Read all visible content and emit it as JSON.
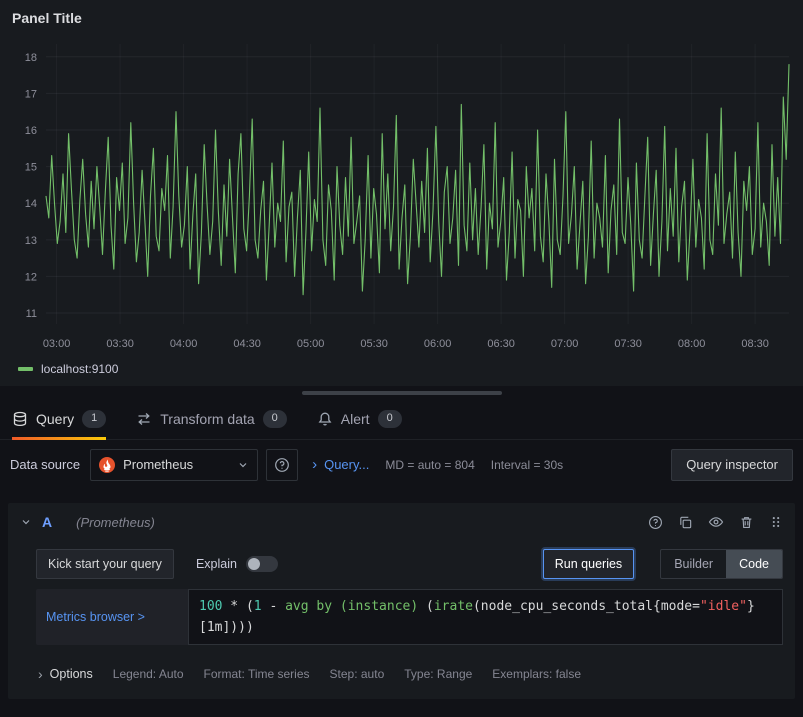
{
  "panel": {
    "title": "Panel Title",
    "legend": "localhost:9100"
  },
  "chart_data": {
    "type": "line",
    "series": [
      {
        "name": "localhost:9100"
      }
    ],
    "color": "#73bf69",
    "ylim": [
      10.7,
      18.35
    ],
    "yticks": [
      11,
      12,
      13,
      14,
      15,
      16,
      17,
      18
    ],
    "xlim": [
      175,
      526
    ],
    "xticks": [
      {
        "label": "03:00",
        "t": 180
      },
      {
        "label": "03:30",
        "t": 210
      },
      {
        "label": "04:00",
        "t": 240
      },
      {
        "label": "04:30",
        "t": 270
      },
      {
        "label": "05:00",
        "t": 300
      },
      {
        "label": "05:30",
        "t": 330
      },
      {
        "label": "06:00",
        "t": 360
      },
      {
        "label": "06:30",
        "t": 390
      },
      {
        "label": "07:00",
        "t": 420
      },
      {
        "label": "07:30",
        "t": 450
      },
      {
        "label": "08:00",
        "t": 480
      },
      {
        "label": "08:30",
        "t": 510
      }
    ],
    "values": [
      14.2,
      13.6,
      15.3,
      14.0,
      12.9,
      13.5,
      14.8,
      13.2,
      15.9,
      14.4,
      13.0,
      12.5,
      14.1,
      15.2,
      13.7,
      12.8,
      14.6,
      13.3,
      15.0,
      13.9,
      12.6,
      14.3,
      15.8,
      13.4,
      12.2,
      14.7,
      13.8,
      15.1,
      12.9,
      13.6,
      16.2,
      14.0,
      12.4,
      13.2,
      14.9,
      13.5,
      12.0,
      14.2,
      15.5,
      13.1,
      12.7,
      14.4,
      13.8,
      15.3,
      12.5,
      13.9,
      16.5,
      14.2,
      12.8,
      13.4,
      15.0,
      12.2,
      13.7,
      14.8,
      11.8,
      13.2,
      15.6,
      14.0,
      12.6,
      13.5,
      16.0,
      13.8,
      12.3,
      14.5,
      13.1,
      15.2,
      13.6,
      12.1,
      14.8,
      15.9,
      13.3,
      12.7,
      14.2,
      16.3,
      13.0,
      12.5,
      13.8,
      14.6,
      11.9,
      13.4,
      15.1,
      12.8,
      14.0,
      13.5,
      15.7,
      12.4,
      13.9,
      14.3,
      12.0,
      13.6,
      14.9,
      11.5,
      13.2,
      15.4,
      12.7,
      14.1,
      13.5,
      16.6,
      13.0,
      12.3,
      14.5,
      13.8,
      11.9,
      15.0,
      13.4,
      12.6,
      14.7,
      13.1,
      15.8,
      12.9,
      13.5,
      14.2,
      11.6,
      13.0,
      15.3,
      12.5,
      14.4,
      13.7,
      12.1,
      15.9,
      13.3,
      14.8,
      12.7,
      13.9,
      16.4,
      12.2,
      13.6,
      14.5,
      11.8,
      13.1,
      15.2,
      14.0,
      12.8,
      14.6,
      13.2,
      15.5,
      12.4,
      13.8,
      16.1,
      13.5,
      12.0,
      14.3,
      15.0,
      12.9,
      13.6,
      14.9,
      12.3,
      16.7,
      13.4,
      12.7,
      15.1,
      13.0,
      14.4,
      12.6,
      13.9,
      15.6,
      12.2,
      14.0,
      13.3,
      16.2,
      12.8,
      13.5,
      14.7,
      11.9,
      13.2,
      15.4,
      12.5,
      14.1,
      13.8,
      12.0,
      15.0,
      13.6,
      14.4,
      12.7,
      16.0,
      13.1,
      12.4,
      14.8,
      13.5,
      11.7,
      15.2,
      13.0,
      12.6,
      14.2,
      16.5,
      12.9,
      13.7,
      15.0,
      12.2,
      13.4,
      14.6,
      11.8,
      13.1,
      15.7,
      12.5,
      14.0,
      13.6,
      12.8,
      15.3,
      12.1,
      13.8,
      14.5,
      12.6,
      16.3,
      13.2,
      12.9,
      14.7,
      13.4,
      11.6,
      15.1,
      13.0,
      12.5,
      14.2,
      15.8,
      12.3,
      13.7,
      14.9,
      12.0,
      13.5,
      16.1,
      12.7,
      14.4,
      13.1,
      15.5,
      12.4,
      13.9,
      14.6,
      11.9,
      13.3,
      15.2,
      12.8,
      14.1,
      13.6,
      12.2,
      15.9,
      13.0,
      12.6,
      14.8,
      13.4,
      16.6,
      12.9,
      13.7,
      14.3,
      12.5,
      15.4,
      13.2,
      12.0,
      14.6,
      13.8,
      15.0,
      12.6,
      13.3,
      16.2,
      12.8,
      14.0,
      13.5,
      12.3,
      15.6,
      13.1,
      14.7,
      12.9,
      16.9,
      15.2,
      17.8
    ]
  },
  "tabs": {
    "query": {
      "label": "Query",
      "count": "1"
    },
    "transform": {
      "label": "Transform data",
      "count": "0"
    },
    "alert": {
      "label": "Alert",
      "count": "0"
    }
  },
  "datasource_row": {
    "label": "Data source",
    "selected": "Prometheus",
    "query_summary": "Query...",
    "md": "MD = auto = 804",
    "interval": "Interval = 30s",
    "inspector": "Query inspector"
  },
  "query_editor": {
    "ref_id": "A",
    "ds_hint": "(Prometheus)",
    "kickstart": "Kick start your query",
    "explain": "Explain",
    "run": "Run queries",
    "builder": "Builder",
    "code": "Code",
    "metrics_browser": "Metrics browser >",
    "code_lines": [
      [
        {
          "t": "100",
          "c": "num"
        },
        {
          "t": " * (",
          "c": "def"
        },
        {
          "t": "1",
          "c": "num"
        },
        {
          "t": " - ",
          "c": "def"
        },
        {
          "t": "avg by ",
          "c": "fn"
        },
        {
          "t": "(instance)",
          "c": "fn"
        },
        {
          "t": " (",
          "c": "def"
        },
        {
          "t": "irate",
          "c": "fn"
        },
        {
          "t": "(node_cpu_seconds_total{",
          "c": "def"
        },
        {
          "t": "mode=",
          "c": "def"
        },
        {
          "t": "\"idle\"",
          "c": "str"
        },
        {
          "t": "}",
          "c": "def"
        }
      ],
      [
        {
          "t": "[1m])))",
          "c": "def"
        }
      ]
    ]
  },
  "options": {
    "toggle": "Options",
    "legend": "Legend: Auto",
    "format": "Format: Time series",
    "step": "Step: auto",
    "type": "Type: Range",
    "exemplars": "Exemplars: false"
  }
}
